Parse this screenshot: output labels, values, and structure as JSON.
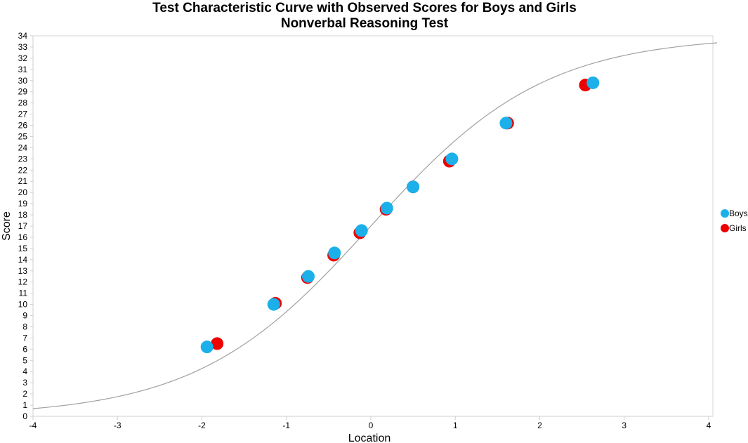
{
  "chart_data": {
    "type": "scatter",
    "title": "Test Characteristic Curve with Observed Scores for Boys and Girls",
    "subtitle": "Nonverbal Reasoning Test",
    "xlabel": "Location",
    "ylabel": "Score",
    "xlim": [
      -4,
      4
    ],
    "ylim": [
      0,
      34
    ],
    "x_ticks": [
      -4,
      -3,
      -2,
      -1,
      0,
      1,
      2,
      3,
      4
    ],
    "y_ticks": [
      0,
      1,
      2,
      3,
      4,
      5,
      6,
      7,
      8,
      9,
      10,
      11,
      12,
      13,
      14,
      15,
      16,
      17,
      18,
      19,
      20,
      21,
      22,
      23,
      24,
      25,
      26,
      27,
      28,
      29,
      30,
      31,
      32,
      33,
      34
    ],
    "grid": false,
    "legend_position": "right",
    "curve": {
      "type": "logistic",
      "max_score": 34,
      "slope": 0.97,
      "color": "#a0a0a0",
      "x_range": [
        -4,
        4.1
      ]
    },
    "series": [
      {
        "name": "Girls",
        "color": "#ee0000",
        "points": [
          {
            "x": -1.82,
            "y": 6.5
          },
          {
            "x": -1.13,
            "y": 10.1
          },
          {
            "x": -0.75,
            "y": 12.4
          },
          {
            "x": -0.44,
            "y": 14.4
          },
          {
            "x": -0.13,
            "y": 16.4
          },
          {
            "x": 0.18,
            "y": 18.5
          },
          {
            "x": 0.5,
            "y": 20.5
          },
          {
            "x": 0.93,
            "y": 22.8
          },
          {
            "x": 1.62,
            "y": 26.2
          },
          {
            "x": 2.54,
            "y": 29.6
          }
        ]
      },
      {
        "name": "Boys",
        "color": "#1bb0ea",
        "points": [
          {
            "x": -1.94,
            "y": 6.2
          },
          {
            "x": -1.15,
            "y": 10.0
          },
          {
            "x": -0.74,
            "y": 12.5
          },
          {
            "x": -0.43,
            "y": 14.6
          },
          {
            "x": -0.11,
            "y": 16.6
          },
          {
            "x": 0.19,
            "y": 18.6
          },
          {
            "x": 0.5,
            "y": 20.5
          },
          {
            "x": 0.96,
            "y": 23.0
          },
          {
            "x": 1.6,
            "y": 26.2
          },
          {
            "x": 2.63,
            "y": 29.8
          }
        ]
      }
    ],
    "legend": [
      {
        "name": "Boys",
        "color": "#1bb0ea"
      },
      {
        "name": "Girls",
        "color": "#ee0000"
      }
    ]
  }
}
